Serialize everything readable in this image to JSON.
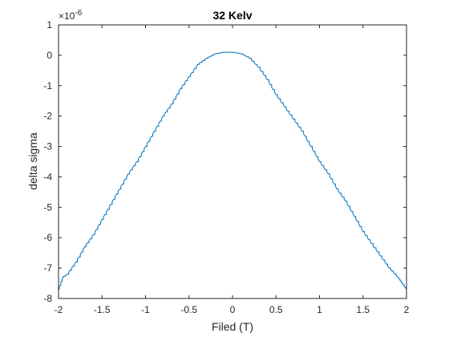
{
  "chart_data": {
    "type": "line",
    "title": "32 Kelv",
    "xlabel": "Filed (T)",
    "ylabel": "delta sigma",
    "y_multiplier_label": "×10",
    "y_multiplier_exponent": "-6",
    "xlim": [
      -2,
      2
    ],
    "ylim": [
      -8,
      1
    ],
    "xticks": [
      -2,
      -1.5,
      -1,
      -0.5,
      0,
      0.5,
      1,
      1.5,
      2
    ],
    "xtick_labels": [
      "-2",
      "-1.5",
      "-1",
      "-0.5",
      "0",
      "0.5",
      "1",
      "1.5",
      "2"
    ],
    "yticks": [
      1,
      0,
      -1,
      -2,
      -3,
      -4,
      -5,
      -6,
      -7,
      -8
    ],
    "ytick_labels": [
      "1",
      "0",
      "-1",
      "-2",
      "-3",
      "-4",
      "-5",
      "-6",
      "-7",
      "-8"
    ],
    "grid": false,
    "legend": false,
    "line_color": "#0072BD",
    "series": [
      {
        "x": [
          -2.0,
          -1.95,
          -1.9,
          -1.8,
          -1.7,
          -1.6,
          -1.5,
          -1.4,
          -1.3,
          -1.2,
          -1.1,
          -1.0,
          -0.9,
          -0.8,
          -0.7,
          -0.6,
          -0.5,
          -0.4,
          -0.3,
          -0.2,
          -0.1,
          0.0,
          0.1,
          0.2,
          0.3,
          0.4,
          0.5,
          0.6,
          0.7,
          0.8,
          0.9,
          1.0,
          1.1,
          1.2,
          1.3,
          1.4,
          1.5,
          1.6,
          1.7,
          1.8,
          1.9,
          1.95,
          2.0
        ],
        "values": [
          -7.7,
          -7.3,
          -7.2,
          -6.8,
          -6.3,
          -5.9,
          -5.4,
          -4.9,
          -4.4,
          -3.9,
          -3.5,
          -3.0,
          -2.5,
          -2.0,
          -1.6,
          -1.1,
          -0.7,
          -0.3,
          -0.1,
          0.05,
          0.1,
          0.1,
          0.05,
          -0.1,
          -0.4,
          -0.8,
          -1.3,
          -1.7,
          -2.1,
          -2.5,
          -3.0,
          -3.5,
          -3.9,
          -4.4,
          -4.8,
          -5.3,
          -5.8,
          -6.2,
          -6.6,
          -7.0,
          -7.3,
          -7.5,
          -7.7
        ]
      }
    ]
  }
}
